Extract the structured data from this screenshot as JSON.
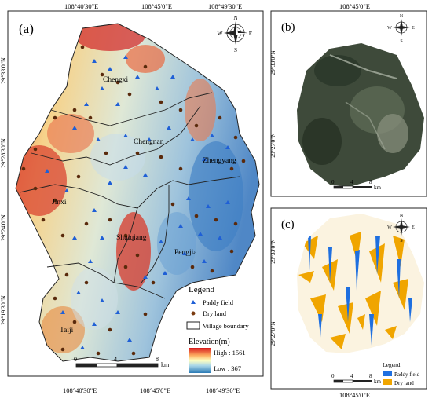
{
  "panel_a": {
    "label": "(a)",
    "top_coords": [
      "108°40'30\"E",
      "108°45'0\"E",
      "108°49'30\"E"
    ],
    "bottom_coords": [
      "108°40'30\"E",
      "108°45'0\"E",
      "108°49'30\"E"
    ],
    "left_coords": [
      "29°33'0\"N",
      "29°28'30\"N",
      "29°24'0\"N",
      "29°19'30\"N"
    ],
    "villages": [
      "Chengxi",
      "Chengnan",
      "Zhengyang",
      "Jinxi",
      "Shuiqiang",
      "Pengjia",
      "Taiji"
    ],
    "legend": {
      "title": "Legend",
      "paddy": "Paddy field",
      "dry": "Dry land",
      "boundary": "Village boundary",
      "elev_title": "Elevation(m)",
      "high": "High : 1561",
      "low": "Low : 367"
    },
    "scale": {
      "zero": "0",
      "mid": "4",
      "end": "8",
      "unit": "km"
    }
  },
  "panel_b": {
    "label": "(b)",
    "top_coord": "108°45'0\"E",
    "left_coords": [
      "29°33'0\"N",
      "29°27'0\"N"
    ],
    "scale": {
      "zero": "0",
      "mid": "4",
      "end": "8",
      "unit": "km"
    }
  },
  "panel_c": {
    "label": "(c)",
    "bottom_coord": "108°45'0\"E",
    "left_coords": [
      "29°33'0\"N",
      "29°27'0\"N"
    ],
    "legend": {
      "title": "Legend",
      "paddy": "Paddy field",
      "dry": "Dry land"
    },
    "scale": {
      "zero": "0",
      "mid": "4",
      "end": "8",
      "unit": "km"
    }
  },
  "compass": {
    "n": "N",
    "s": "S",
    "e": "E",
    "w": "W"
  },
  "colors": {
    "paddy": "#1f5fd6",
    "dry": "#7a3b10",
    "high": "#d7191c",
    "low": "#2c7bb6",
    "land_paddy": "#1e6fe0",
    "land_dry": "#f0a500"
  }
}
